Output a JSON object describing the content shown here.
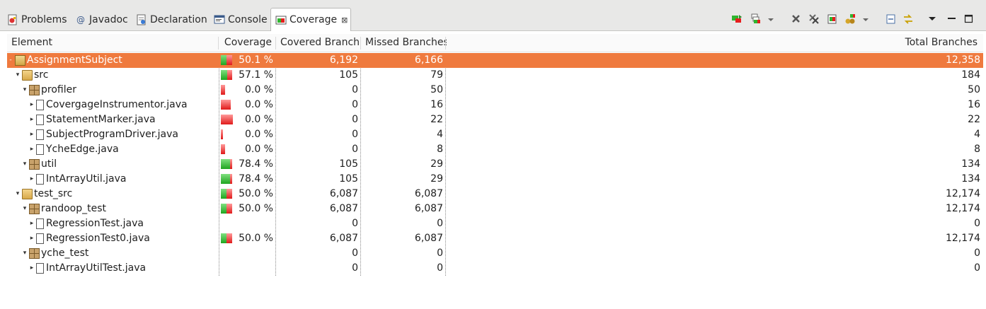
{
  "tabs": [
    {
      "label": "Problems",
      "icon": "problems-icon",
      "active": false
    },
    {
      "label": "Javadoc",
      "icon": "javadoc-icon",
      "active": false
    },
    {
      "label": "Declaration",
      "icon": "declaration-icon",
      "active": false
    },
    {
      "label": "Console",
      "icon": "console-icon",
      "active": false
    },
    {
      "label": "Coverage",
      "icon": "coverage-icon",
      "active": true
    }
  ],
  "javadoc_glyph": "@",
  "close_glyph": "⊠",
  "columns": {
    "element": "Element",
    "coverage": "Coverage",
    "covered": "Covered Branches",
    "missed": "Missed Branches",
    "total": "Total Branches"
  },
  "colors": {
    "selection": "#ef7a3e",
    "covered": "#2fb52f",
    "missed": "#e61e1e"
  },
  "rows": [
    {
      "name": "AssignmentSubject",
      "type": "project",
      "depth": 0,
      "expander": "-",
      "coverage": "50.1 %",
      "covered": "6,192",
      "missed": "6,166",
      "total": "12,358",
      "ratio": 0.501,
      "selected": true
    },
    {
      "name": "src",
      "type": "folder",
      "depth": 1,
      "expander": "▾",
      "coverage": "57.1 %",
      "covered": "105",
      "missed": "79",
      "total": "184",
      "ratio": 0.571
    },
    {
      "name": "profiler",
      "type": "package",
      "depth": 2,
      "expander": "▾",
      "coverage": "0.0 %",
      "covered": "0",
      "missed": "50",
      "total": "50",
      "ratio": 0.0,
      "barw": 6
    },
    {
      "name": "CovergageInstrumentor.java",
      "type": "java",
      "depth": 3,
      "expander": "▸",
      "coverage": "0.0 %",
      "covered": "0",
      "missed": "16",
      "total": "16",
      "ratio": 0.0,
      "barw": 14
    },
    {
      "name": "StatementMarker.java",
      "type": "java",
      "depth": 3,
      "expander": "▸",
      "coverage": "0.0 %",
      "covered": "0",
      "missed": "22",
      "total": "22",
      "ratio": 0.0,
      "barw": 17
    },
    {
      "name": "SubjectProgramDriver.java",
      "type": "java",
      "depth": 3,
      "expander": "▸",
      "coverage": "0.0 %",
      "covered": "0",
      "missed": "4",
      "total": "4",
      "ratio": 0.0,
      "barw": 3
    },
    {
      "name": "YcheEdge.java",
      "type": "java",
      "depth": 3,
      "expander": "▸",
      "coverage": "0.0 %",
      "covered": "0",
      "missed": "8",
      "total": "8",
      "ratio": 0.0,
      "barw": 6
    },
    {
      "name": "util",
      "type": "package",
      "depth": 2,
      "expander": "▾",
      "coverage": "78.4 %",
      "covered": "105",
      "missed": "29",
      "total": "134",
      "ratio": 0.784
    },
    {
      "name": "IntArrayUtil.java",
      "type": "java",
      "depth": 3,
      "expander": "▸",
      "coverage": "78.4 %",
      "covered": "105",
      "missed": "29",
      "total": "134",
      "ratio": 0.784
    },
    {
      "name": "test_src",
      "type": "folder",
      "depth": 1,
      "expander": "▾",
      "coverage": "50.0 %",
      "covered": "6,087",
      "missed": "6,087",
      "total": "12,174",
      "ratio": 0.5
    },
    {
      "name": "randoop_test",
      "type": "package",
      "depth": 2,
      "expander": "▾",
      "coverage": "50.0 %",
      "covered": "6,087",
      "missed": "6,087",
      "total": "12,174",
      "ratio": 0.5
    },
    {
      "name": "RegressionTest.java",
      "type": "java",
      "depth": 3,
      "expander": "▸",
      "coverage": "",
      "covered": "0",
      "missed": "0",
      "total": "0",
      "ratio": null
    },
    {
      "name": "RegressionTest0.java",
      "type": "java",
      "depth": 3,
      "expander": "▸",
      "coverage": "50.0 %",
      "covered": "6,087",
      "missed": "6,087",
      "total": "12,174",
      "ratio": 0.5
    },
    {
      "name": "yche_test",
      "type": "package",
      "depth": 2,
      "expander": "▾",
      "coverage": "",
      "covered": "0",
      "missed": "0",
      "total": "0",
      "ratio": null
    },
    {
      "name": "IntArrayUtilTest.java",
      "type": "java",
      "depth": 3,
      "expander": "▸",
      "coverage": "",
      "covered": "0",
      "missed": "0",
      "total": "0",
      "ratio": null
    }
  ],
  "toolbar": [
    "relaunch-icon",
    "merge-sessions-icon",
    "dropdown-arrow-icon",
    "remove-session-icon",
    "remove-all-sessions-icon",
    "dump-execution-data-icon",
    "select-session-icon",
    "dropdown-arrow-icon",
    "collapse-all-icon",
    "link-with-selection-icon",
    "view-menu-icon",
    "minimize-icon",
    "maximize-icon"
  ]
}
